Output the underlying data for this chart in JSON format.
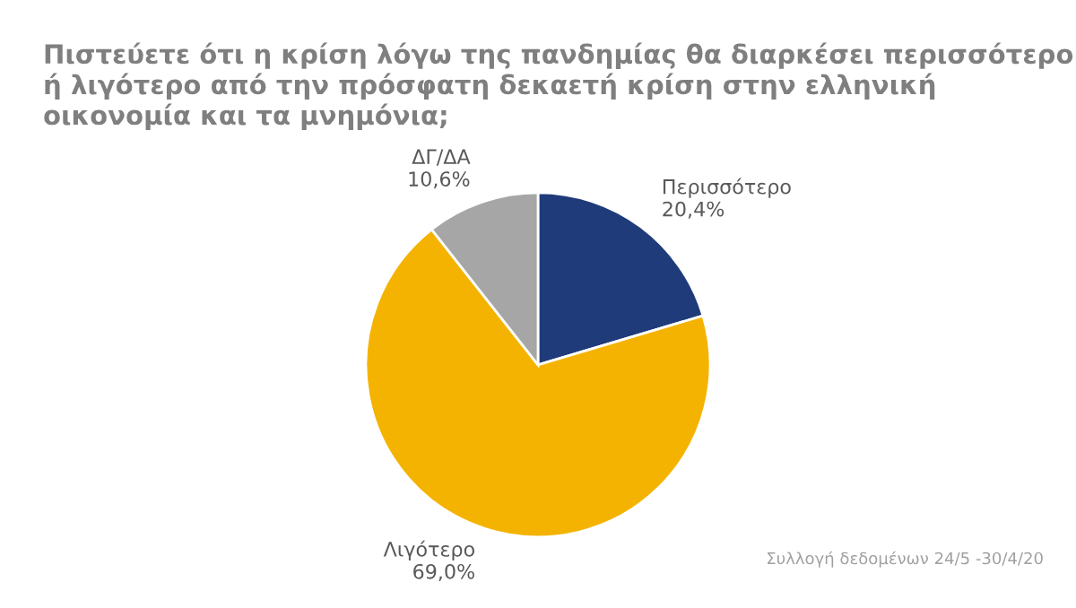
{
  "chart_data": {
    "type": "pie",
    "title": "Πιστεύετε ότι η κρίση λόγω της πανδημίας θα διαρκέσει περισσότερο ή λιγότερο από την πρόσφατη δεκαετή κρίση στην ελληνική οικονομία και τα μνημόνια;",
    "categories": [
      "Περισσότερο",
      "Λιγότερο",
      "ΔΓ/ΔΑ"
    ],
    "values": [
      20.4,
      69.0,
      10.6
    ],
    "value_labels": [
      "20,4%",
      "69,0%",
      "10,6%"
    ],
    "colors": [
      "#1f3b7a",
      "#f5b301",
      "#a6a6a6"
    ],
    "annotations": [
      "Συλλογή δεδομένων 24/5 -30/4/20"
    ]
  }
}
